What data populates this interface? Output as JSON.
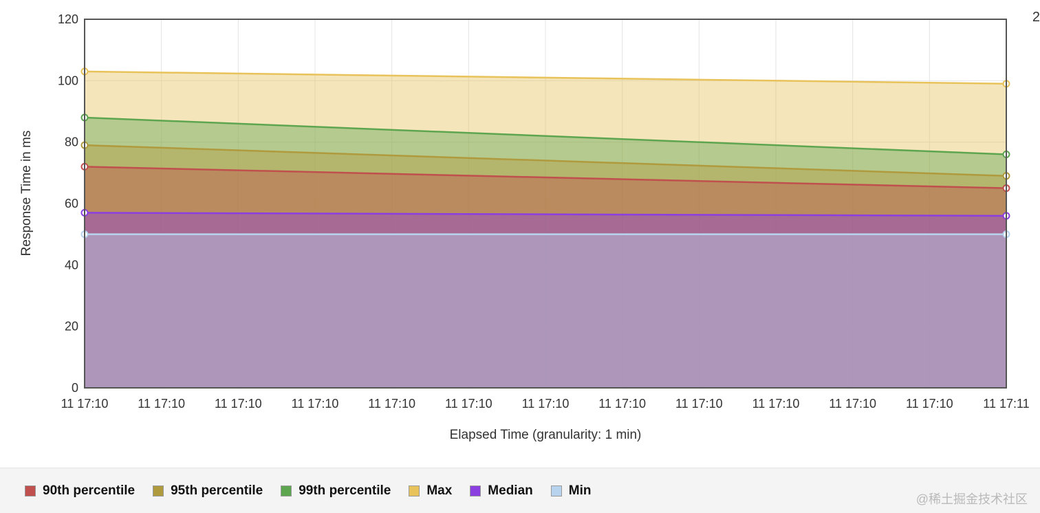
{
  "chart_data": {
    "type": "area",
    "title": "",
    "xlabel": "Elapsed Time (granularity: 1 min)",
    "ylabel": "Response Time in ms",
    "ylim": [
      0,
      120
    ],
    "yticks": [
      0,
      20,
      40,
      60,
      80,
      100,
      120
    ],
    "x_tick_labels": [
      "11 17:10",
      "11 17:10",
      "11 17:10",
      "11 17:10",
      "11 17:10",
      "11 17:10",
      "11 17:10",
      "11 17:10",
      "11 17:10",
      "11 17:10",
      "11 17:10",
      "11 17:10",
      "11 17:11"
    ],
    "x_points": [
      "11 17:10",
      "11 17:11"
    ],
    "grid": true,
    "legend_position": "bottom",
    "series": [
      {
        "name": "Max",
        "color": "#e8c25a",
        "values": [
          103,
          99
        ]
      },
      {
        "name": "99th percentile",
        "color": "#5ea550",
        "values": [
          88,
          76
        ]
      },
      {
        "name": "95th percentile",
        "color": "#b09a3e",
        "values": [
          79,
          69
        ]
      },
      {
        "name": "90th percentile",
        "color": "#c0504d",
        "values": [
          72,
          65
        ]
      },
      {
        "name": "Median",
        "color": "#8c3fe0",
        "values": [
          57,
          56
        ]
      },
      {
        "name": "Min",
        "color": "#b7d3ee",
        "values": [
          50,
          50
        ]
      }
    ]
  },
  "legend": [
    {
      "label": "90th percentile",
      "color": "#c0504d"
    },
    {
      "label": "95th percentile",
      "color": "#b09a3e"
    },
    {
      "label": "99th percentile",
      "color": "#5ea550"
    },
    {
      "label": "Max",
      "color": "#e8c25a"
    },
    {
      "label": "Median",
      "color": "#8c3fe0"
    },
    {
      "label": "Min",
      "color": "#b7d3ee"
    }
  ],
  "edge_text": "2",
  "watermark": "@稀土掘金技术社区"
}
